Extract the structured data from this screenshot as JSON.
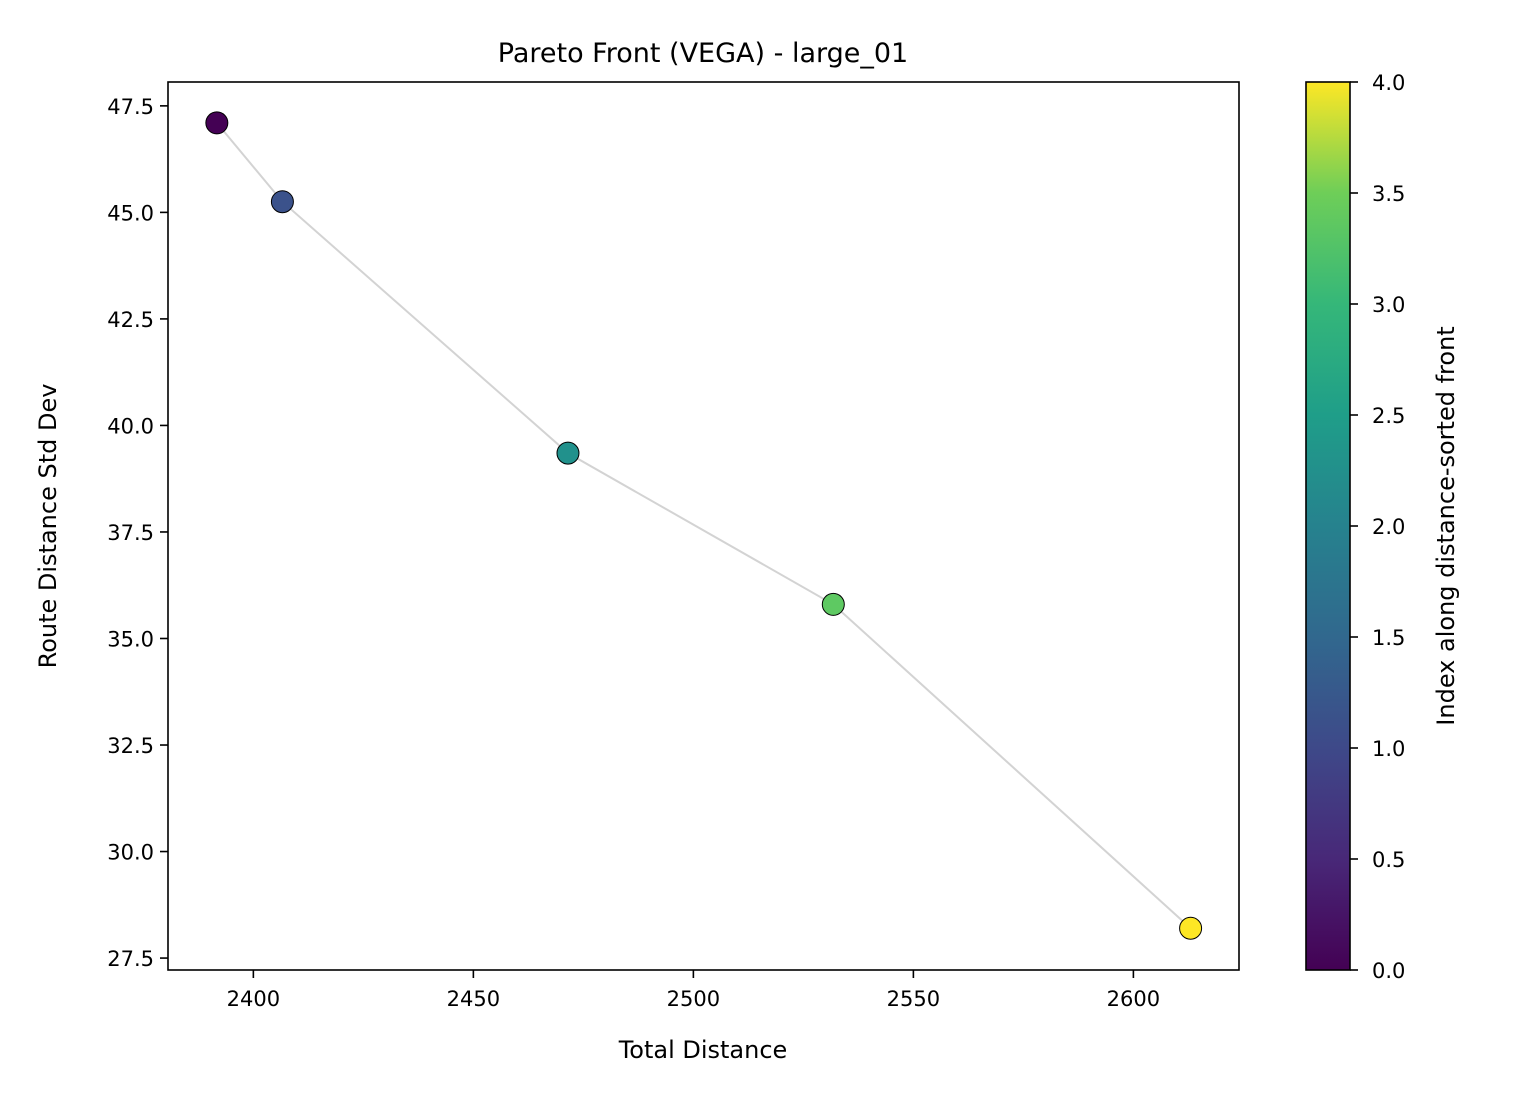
{
  "chart_data": {
    "type": "scatter",
    "title": "Pareto Front (VEGA) - large_01",
    "xlabel": "Total Distance",
    "ylabel": "Route Distance Std Dev",
    "xlim": [
      2380.6,
      2624.0
    ],
    "ylim": [
      27.22,
      48.06
    ],
    "xticks": [
      2400,
      2450,
      2500,
      2550,
      2600
    ],
    "xtick_labels": [
      "2400",
      "2450",
      "2500",
      "2550",
      "2600"
    ],
    "yticks": [
      27.5,
      30.0,
      32.5,
      35.0,
      37.5,
      40.0,
      42.5,
      45.0,
      47.5
    ],
    "ytick_labels": [
      "27.5",
      "30.0",
      "32.5",
      "35.0",
      "37.5",
      "40.0",
      "42.5",
      "45.0",
      "47.5"
    ],
    "grid": false,
    "series": [
      {
        "x": [
          2391.7,
          2406.6,
          2471.5,
          2531.8,
          2613.0
        ],
        "y": [
          47.1,
          45.25,
          39.35,
          35.8,
          28.2
        ],
        "color_index": [
          0,
          1,
          2,
          3,
          4
        ],
        "line_color": "#d3d3d3"
      }
    ],
    "colorbar": {
      "label": "Index along distance-sorted front",
      "colormap": "viridis",
      "range": [
        0.0,
        4.0
      ],
      "ticks": [
        0.0,
        0.5,
        1.0,
        1.5,
        2.0,
        2.5,
        3.0,
        3.5,
        4.0
      ],
      "tick_labels": [
        "0.0",
        "0.5",
        "1.0",
        "1.5",
        "2.0",
        "2.5",
        "3.0",
        "3.5",
        "4.0"
      ],
      "colors": [
        "#440154",
        "#3b528b",
        "#21918c",
        "#5ec962",
        "#fde725"
      ]
    }
  }
}
